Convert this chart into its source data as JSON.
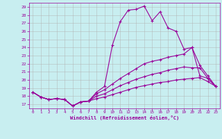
{
  "xlabel": "Windchill (Refroidissement éolien,°C)",
  "xlim": [
    -0.5,
    23.5
  ],
  "ylim": [
    16.5,
    29.5
  ],
  "yticks": [
    17,
    18,
    19,
    20,
    21,
    22,
    23,
    24,
    25,
    26,
    27,
    28,
    29
  ],
  "xticks": [
    0,
    1,
    2,
    3,
    4,
    5,
    6,
    7,
    8,
    9,
    10,
    11,
    12,
    13,
    14,
    15,
    16,
    17,
    18,
    19,
    20,
    21,
    22,
    23
  ],
  "bg_color": "#c8eef0",
  "line_color": "#990099",
  "grid_color": "#b0b0b0",
  "lines": [
    {
      "x": [
        0,
        1,
        2,
        3,
        4,
        5,
        6,
        7,
        8,
        9,
        10,
        11,
        12,
        13,
        14,
        15,
        16,
        17,
        18,
        19,
        20,
        21,
        22,
        23
      ],
      "y": [
        18.5,
        17.9,
        17.6,
        17.7,
        17.6,
        16.8,
        17.3,
        17.4,
        18.5,
        19.2,
        24.3,
        27.2,
        28.6,
        28.7,
        29.1,
        27.3,
        28.4,
        26.4,
        26.0,
        23.8,
        24.0,
        20.5,
        20.2,
        19.2
      ]
    },
    {
      "x": [
        0,
        1,
        2,
        3,
        4,
        5,
        6,
        7,
        8,
        9,
        10,
        11,
        12,
        13,
        14,
        15,
        16,
        17,
        18,
        19,
        20,
        21,
        22,
        23
      ],
      "y": [
        18.5,
        17.9,
        17.6,
        17.7,
        17.6,
        16.8,
        17.3,
        17.4,
        18.3,
        18.8,
        19.5,
        20.2,
        20.8,
        21.4,
        22.0,
        22.3,
        22.5,
        22.8,
        23.0,
        23.2,
        24.0,
        21.8,
        20.5,
        19.2
      ]
    },
    {
      "x": [
        0,
        1,
        2,
        3,
        4,
        5,
        6,
        7,
        8,
        9,
        10,
        11,
        12,
        13,
        14,
        15,
        16,
        17,
        18,
        19,
        20,
        21,
        22,
        23
      ],
      "y": [
        18.5,
        17.9,
        17.6,
        17.7,
        17.6,
        16.8,
        17.3,
        17.4,
        18.0,
        18.3,
        18.8,
        19.3,
        19.7,
        20.1,
        20.4,
        20.7,
        20.9,
        21.2,
        21.4,
        21.6,
        21.5,
        21.5,
        20.2,
        19.2
      ]
    },
    {
      "x": [
        0,
        1,
        2,
        3,
        4,
        5,
        6,
        7,
        8,
        9,
        10,
        11,
        12,
        13,
        14,
        15,
        16,
        17,
        18,
        19,
        20,
        21,
        22,
        23
      ],
      "y": [
        18.5,
        17.9,
        17.6,
        17.7,
        17.6,
        16.8,
        17.3,
        17.4,
        17.7,
        17.9,
        18.2,
        18.5,
        18.8,
        19.1,
        19.3,
        19.5,
        19.7,
        19.8,
        20.0,
        20.1,
        20.2,
        20.3,
        19.8,
        19.2
      ]
    }
  ]
}
